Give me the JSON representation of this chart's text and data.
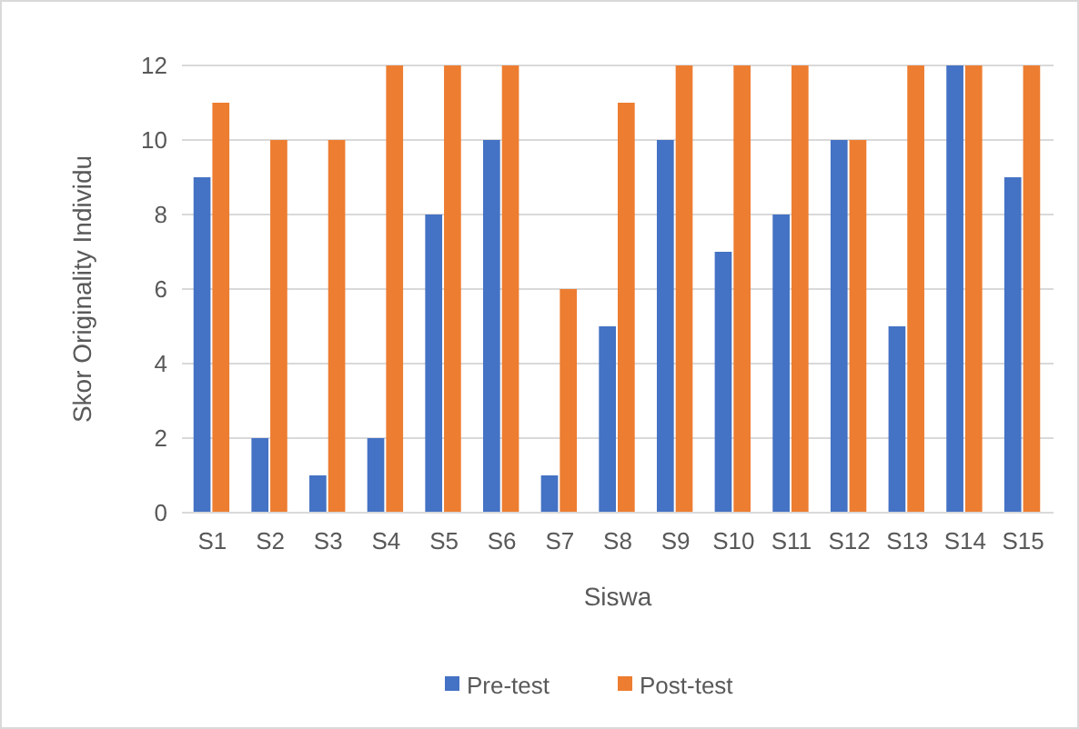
{
  "chart_data": {
    "type": "bar",
    "xlabel": "Siswa",
    "ylabel": "Skor Originality Individu",
    "categories": [
      "S1",
      "S2",
      "S3",
      "S4",
      "S5",
      "S6",
      "S7",
      "S8",
      "S9",
      "S10",
      "S11",
      "S12",
      "S13",
      "S14",
      "S15"
    ],
    "series": [
      {
        "name": "Pre-test",
        "color": "#4472c4",
        "values": [
          9,
          2,
          1,
          2,
          8,
          10,
          1,
          5,
          10,
          7,
          8,
          10,
          5,
          12,
          9
        ]
      },
      {
        "name": "Post-test",
        "color": "#ed7d31",
        "values": [
          11,
          10,
          10,
          12,
          12,
          12,
          6,
          11,
          12,
          12,
          12,
          10,
          12,
          12,
          12
        ]
      }
    ],
    "ylim": [
      0,
      12
    ],
    "yticks": [
      0,
      2,
      4,
      6,
      8,
      10,
      12
    ],
    "grid": "y",
    "legend": "bottom"
  }
}
